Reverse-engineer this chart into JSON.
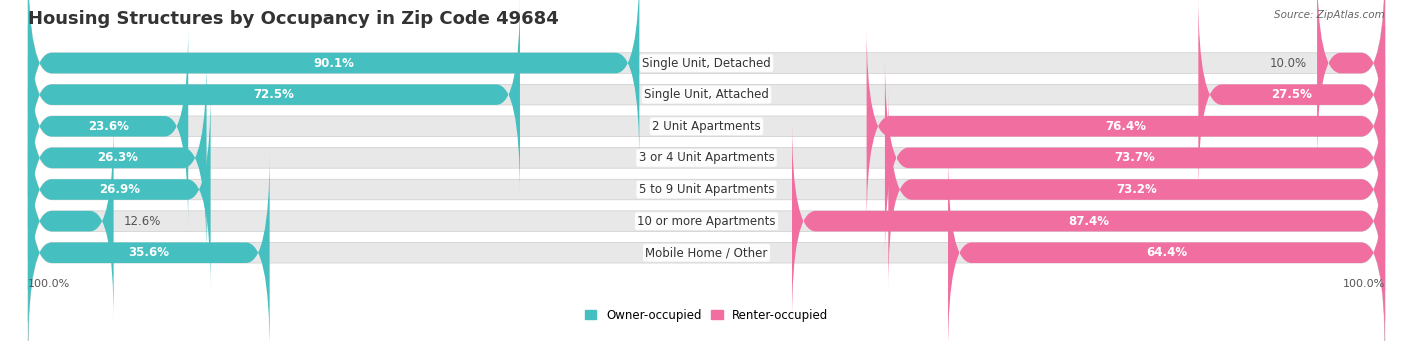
{
  "title": "Housing Structures by Occupancy in Zip Code 49684",
  "source": "Source: ZipAtlas.com",
  "categories": [
    "Single Unit, Detached",
    "Single Unit, Attached",
    "2 Unit Apartments",
    "3 or 4 Unit Apartments",
    "5 to 9 Unit Apartments",
    "10 or more Apartments",
    "Mobile Home / Other"
  ],
  "owner_pct": [
    90.1,
    72.5,
    23.6,
    26.3,
    26.9,
    12.6,
    35.6
  ],
  "renter_pct": [
    10.0,
    27.5,
    76.4,
    73.7,
    73.2,
    87.4,
    64.4
  ],
  "owner_color": "#45BFBF",
  "renter_color": "#F06FA0",
  "bg_color": "#FFFFFF",
  "row_bg_color": "#E8E8E8",
  "title_fontsize": 13,
  "label_fontsize": 8.5,
  "pct_fontsize": 8.5,
  "bar_height": 0.65,
  "figsize": [
    14.06,
    3.41
  ],
  "dpi": 100,
  "legend_owner": "Owner-occupied",
  "legend_renter": "Renter-occupied",
  "axis_label_left": "100.0%",
  "axis_label_right": "100.0%"
}
